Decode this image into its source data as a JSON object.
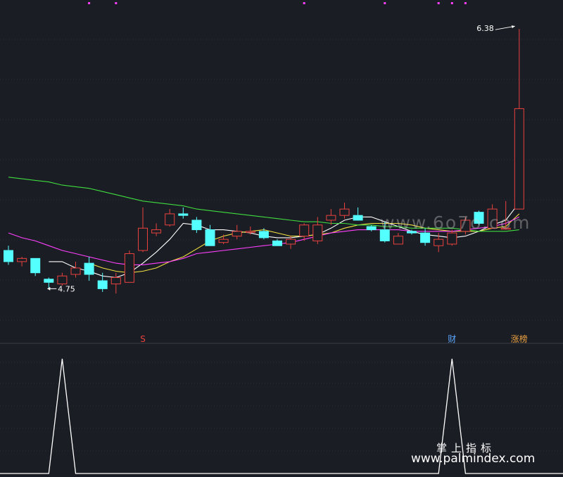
{
  "chart_data": [
    {
      "type": "candlestick",
      "name": "price",
      "grid": true,
      "colors": {
        "up": "#e8423e",
        "down": "#54ffff",
        "background": "#1b1d24",
        "grid": "#2d3038"
      },
      "ylim": [
        4.5,
        6.5
      ],
      "candles": [
        {
          "o": 4.99,
          "h": 5.02,
          "l": 4.9,
          "c": 4.92
        },
        {
          "o": 4.92,
          "h": 4.95,
          "l": 4.89,
          "c": 4.94
        },
        {
          "o": 4.94,
          "h": 4.94,
          "l": 4.83,
          "c": 4.85
        },
        {
          "o": 4.81,
          "h": 4.82,
          "l": 4.75,
          "c": 4.79
        },
        {
          "o": 4.78,
          "h": 4.85,
          "l": 4.77,
          "c": 4.83
        },
        {
          "o": 4.84,
          "h": 4.92,
          "l": 4.82,
          "c": 4.88
        },
        {
          "o": 4.91,
          "h": 4.95,
          "l": 4.8,
          "c": 4.84
        },
        {
          "o": 4.8,
          "h": 4.85,
          "l": 4.73,
          "c": 4.75
        },
        {
          "o": 4.78,
          "h": 4.85,
          "l": 4.72,
          "c": 4.82
        },
        {
          "o": 4.79,
          "h": 4.99,
          "l": 4.79,
          "c": 4.97
        },
        {
          "o": 4.99,
          "h": 5.26,
          "l": 4.98,
          "c": 5.13
        },
        {
          "o": 5.1,
          "h": 5.16,
          "l": 5.08,
          "c": 5.12
        },
        {
          "o": 5.15,
          "h": 5.25,
          "l": 5.14,
          "c": 5.22
        },
        {
          "o": 5.22,
          "h": 5.26,
          "l": 5.19,
          "c": 5.21
        },
        {
          "o": 5.18,
          "h": 5.2,
          "l": 5.1,
          "c": 5.12
        },
        {
          "o": 5.12,
          "h": 5.15,
          "l": 5.02,
          "c": 5.02
        },
        {
          "o": 5.04,
          "h": 5.09,
          "l": 5.03,
          "c": 5.06
        },
        {
          "o": 5.08,
          "h": 5.15,
          "l": 5.06,
          "c": 5.11
        },
        {
          "o": 5.11,
          "h": 5.14,
          "l": 5.09,
          "c": 5.11
        },
        {
          "o": 5.11,
          "h": 5.13,
          "l": 5.06,
          "c": 5.07
        },
        {
          "o": 5.05,
          "h": 5.06,
          "l": 5.02,
          "c": 5.02
        },
        {
          "o": 5.03,
          "h": 5.08,
          "l": 5.0,
          "c": 5.06
        },
        {
          "o": 5.08,
          "h": 5.16,
          "l": 5.05,
          "c": 5.15
        },
        {
          "o": 5.05,
          "h": 5.2,
          "l": 5.03,
          "c": 5.15
        },
        {
          "o": 5.18,
          "h": 5.25,
          "l": 5.15,
          "c": 5.21
        },
        {
          "o": 5.21,
          "h": 5.29,
          "l": 5.19,
          "c": 5.25
        },
        {
          "o": 5.21,
          "h": 5.26,
          "l": 5.18,
          "c": 5.18
        },
        {
          "o": 5.14,
          "h": 5.15,
          "l": 5.11,
          "c": 5.12
        },
        {
          "o": 5.12,
          "h": 5.17,
          "l": 5.04,
          "c": 5.05
        },
        {
          "o": 5.03,
          "h": 5.1,
          "l": 5.03,
          "c": 5.08
        },
        {
          "o": 5.11,
          "h": 5.12,
          "l": 5.09,
          "c": 5.1
        },
        {
          "o": 5.1,
          "h": 5.13,
          "l": 5.02,
          "c": 5.04
        },
        {
          "o": 5.02,
          "h": 5.1,
          "l": 4.98,
          "c": 5.06
        },
        {
          "o": 5.03,
          "h": 5.12,
          "l": 5.02,
          "c": 5.1
        },
        {
          "o": 5.11,
          "h": 5.2,
          "l": 5.09,
          "c": 5.18
        },
        {
          "o": 5.23,
          "h": 5.24,
          "l": 5.15,
          "c": 5.16
        },
        {
          "o": 5.13,
          "h": 5.28,
          "l": 5.13,
          "c": 5.25
        },
        {
          "o": 5.13,
          "h": 5.3,
          "l": 5.12,
          "c": 5.13
        },
        {
          "o": 5.25,
          "h": 6.38,
          "l": 5.25,
          "c": 5.88
        }
      ],
      "ma": [
        {
          "color": "#ffffff",
          "values": [
            null,
            null,
            null,
            4.92,
            4.92,
            4.88,
            4.86,
            4.83,
            4.82,
            4.85,
            4.91,
            4.98,
            5.06,
            5.16,
            5.15,
            5.12,
            5.12,
            5.11,
            5.1,
            5.08,
            5.07,
            5.07,
            5.08,
            5.09,
            5.13,
            5.18,
            5.2,
            5.2,
            5.17,
            5.14,
            5.11,
            5.09,
            5.08,
            5.07,
            5.08,
            5.11,
            5.15,
            5.18,
            5.29
          ]
        },
        {
          "color": "#f0e040",
          "values": [
            null,
            null,
            null,
            null,
            null,
            null,
            4.91,
            4.88,
            4.86,
            4.85,
            4.86,
            4.88,
            4.92,
            4.95,
            5.0,
            5.05,
            5.08,
            5.1,
            5.11,
            5.12,
            5.1,
            5.08,
            5.08,
            5.09,
            5.1,
            5.13,
            5.15,
            5.16,
            5.16,
            5.16,
            5.15,
            5.13,
            5.12,
            5.11,
            5.11,
            5.11,
            5.13,
            5.14,
            5.22
          ]
        },
        {
          "color": "#ff40ff",
          "values": [
            5.1,
            5.07,
            5.05,
            5.02,
            4.99,
            4.97,
            4.95,
            4.93,
            4.91,
            4.9,
            4.9,
            4.91,
            4.92,
            4.94,
            4.97,
            4.98,
            4.99,
            5.0,
            5.01,
            5.02,
            5.03,
            5.04,
            5.06,
            5.08,
            5.1,
            5.11,
            5.12,
            5.12,
            5.12,
            5.12,
            5.11,
            5.11,
            5.11,
            5.11,
            5.12,
            5.13,
            5.14,
            5.16,
            5.2
          ]
        },
        {
          "color": "#3fdc3f",
          "values": [
            5.45,
            5.44,
            5.43,
            5.42,
            5.4,
            5.39,
            5.38,
            5.36,
            5.34,
            5.32,
            5.3,
            5.29,
            5.28,
            5.27,
            5.25,
            5.24,
            5.23,
            5.22,
            5.21,
            5.2,
            5.19,
            5.18,
            5.17,
            5.17,
            5.16,
            5.16,
            5.15,
            5.15,
            5.14,
            5.14,
            5.13,
            5.13,
            5.13,
            5.13,
            5.12,
            5.11,
            5.11,
            5.11,
            5.12
          ]
        }
      ],
      "annotations": [
        {
          "text": "6.38",
          "index": 38,
          "value": 6.38,
          "arrow": "right"
        },
        {
          "text": "4.75",
          "index": 3,
          "value": 4.75,
          "arrow": "left"
        }
      ],
      "top_markers": [
        6,
        8,
        22,
        28,
        32,
        33,
        34
      ]
    },
    {
      "type": "line",
      "name": "signal",
      "ylim": [
        0,
        1
      ],
      "values": [
        0,
        0,
        0,
        0,
        1,
        0,
        0,
        0,
        0,
        0,
        0,
        0,
        0,
        0,
        0,
        0,
        0,
        0,
        0,
        0,
        0,
        0,
        0,
        0,
        0,
        0,
        0,
        0,
        0,
        0,
        0,
        0,
        0,
        1,
        0,
        0,
        0,
        0,
        0
      ],
      "signal_labels": [
        {
          "index": 10,
          "text": "S",
          "color": "#e8423e"
        },
        {
          "index": 33,
          "text": "财",
          "color": "#5aa7ff"
        },
        {
          "index": 38,
          "text": "涨榜",
          "color": "#e8a040"
        }
      ]
    }
  ],
  "watermark": {
    "line1": "掌上指标",
    "line2": "www.palmindex.com",
    "mid": "www.6o7o.com"
  }
}
